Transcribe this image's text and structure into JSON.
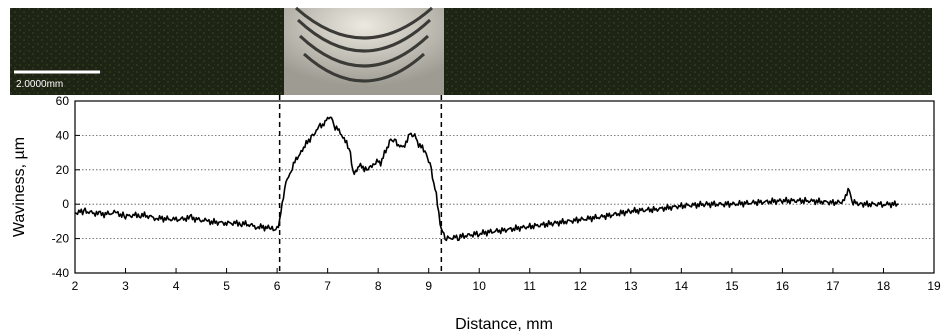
{
  "scale_bar_label": "2.0000mm",
  "colors": {
    "micrograph_dark": "#1d2414",
    "micrograph_weld": "#c9c7c0",
    "line": "#000000",
    "grid": "#555555"
  },
  "chart_data": {
    "type": "line",
    "xlabel": "Distance, mm",
    "ylabel": "Waviness, µm",
    "xlim": [
      2,
      19
    ],
    "ylim": [
      -40,
      60
    ],
    "x_ticks": [
      2,
      3,
      4,
      5,
      6,
      7,
      8,
      9,
      10,
      11,
      12,
      13,
      14,
      15,
      16,
      17,
      18,
      19
    ],
    "y_ticks": [
      -40,
      -20,
      0,
      20,
      40,
      60
    ],
    "grid": "horizontal dotted",
    "vertical_markers": [
      6.05,
      9.25
    ],
    "series": [
      {
        "values": [
          [
            2.0,
            -5
          ],
          [
            2.2,
            -4
          ],
          [
            2.5,
            -6
          ],
          [
            2.8,
            -5
          ],
          [
            3.0,
            -7
          ],
          [
            3.3,
            -6
          ],
          [
            3.6,
            -8
          ],
          [
            4.0,
            -9
          ],
          [
            4.3,
            -8
          ],
          [
            4.6,
            -10
          ],
          [
            5.0,
            -11
          ],
          [
            5.3,
            -11
          ],
          [
            5.6,
            -13
          ],
          [
            5.9,
            -14
          ],
          [
            6.0,
            -15
          ],
          [
            6.05,
            -10
          ],
          [
            6.15,
            10
          ],
          [
            6.3,
            22
          ],
          [
            6.5,
            32
          ],
          [
            6.7,
            40
          ],
          [
            6.85,
            45
          ],
          [
            7.0,
            49
          ],
          [
            7.05,
            51
          ],
          [
            7.15,
            45
          ],
          [
            7.3,
            40
          ],
          [
            7.45,
            30
          ],
          [
            7.5,
            18
          ],
          [
            7.65,
            22
          ],
          [
            7.8,
            20
          ],
          [
            7.95,
            25
          ],
          [
            8.05,
            24
          ],
          [
            8.25,
            38
          ],
          [
            8.35,
            36
          ],
          [
            8.5,
            32
          ],
          [
            8.6,
            40
          ],
          [
            8.7,
            41
          ],
          [
            8.8,
            35
          ],
          [
            8.95,
            30
          ],
          [
            9.05,
            20
          ],
          [
            9.15,
            5
          ],
          [
            9.25,
            -15
          ],
          [
            9.35,
            -20
          ],
          [
            9.6,
            -19
          ],
          [
            10.0,
            -17
          ],
          [
            10.5,
            -15
          ],
          [
            11.0,
            -13
          ],
          [
            11.5,
            -11
          ],
          [
            12.0,
            -9
          ],
          [
            12.5,
            -7
          ],
          [
            13.0,
            -4
          ],
          [
            13.5,
            -3
          ],
          [
            14.0,
            -1
          ],
          [
            14.5,
            0
          ],
          [
            15.0,
            0
          ],
          [
            15.5,
            1
          ],
          [
            16.0,
            2
          ],
          [
            16.5,
            2
          ],
          [
            17.0,
            1
          ],
          [
            17.2,
            1
          ],
          [
            17.3,
            9
          ],
          [
            17.4,
            1
          ],
          [
            17.6,
            0
          ],
          [
            18.0,
            0
          ],
          [
            18.3,
            0
          ]
        ]
      }
    ]
  }
}
